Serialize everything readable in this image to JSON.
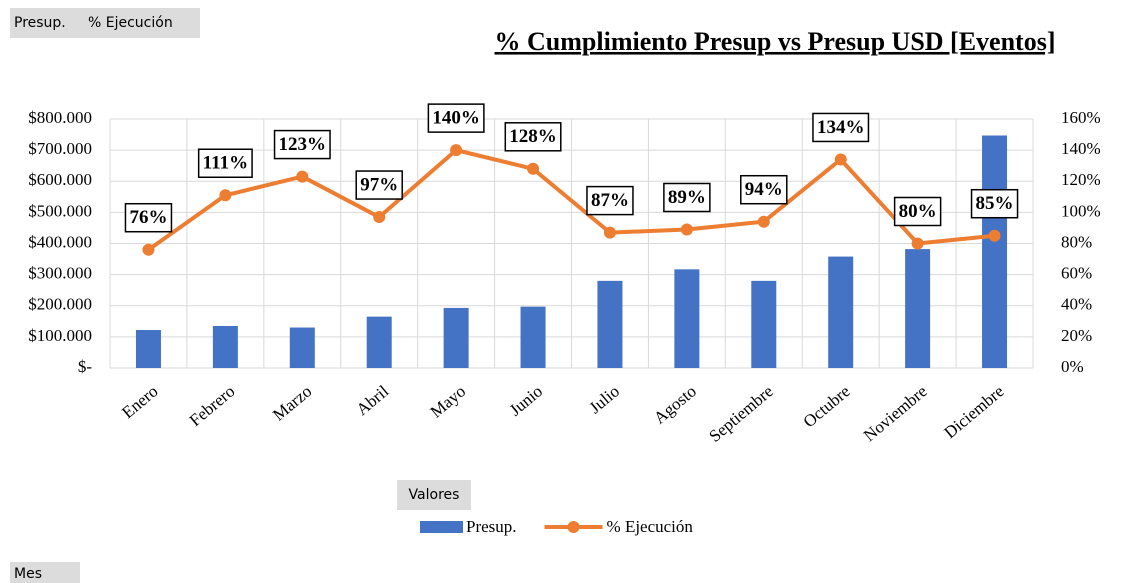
{
  "chart_data": {
    "type": "bar",
    "title": "% Cumplimiento Presup vs Presup USD [Eventos]",
    "categories": [
      "Enero",
      "Febrero",
      "Marzo",
      "Abril",
      "Mayo",
      "Junio",
      "Julio",
      "Agosto",
      "Septiembre",
      "Octubre",
      "Noviembre",
      "Diciembre"
    ],
    "series": [
      {
        "name": "Presup.",
        "type": "bar",
        "color": "#4472c4",
        "axis": "y",
        "values": [
          122000,
          135000,
          130000,
          165000,
          193000,
          197000,
          280000,
          317000,
          280000,
          358000,
          382000,
          747000
        ]
      },
      {
        "name": "% Ejecución",
        "type": "line",
        "color": "#ed7d31",
        "axis": "y2",
        "values": [
          76,
          111,
          123,
          97,
          140,
          128,
          87,
          89,
          94,
          134,
          80,
          85
        ],
        "value_labels": [
          "76%",
          "111%",
          "123%",
          "97%",
          "140%",
          "128%",
          "87%",
          "89%",
          "94%",
          "134%",
          "80%",
          "85%"
        ]
      }
    ],
    "ylim": [
      0,
      800000
    ],
    "yticks": [
      {
        "value": 0,
        "label": "$-"
      },
      {
        "value": 100000,
        "label": "$100.000"
      },
      {
        "value": 200000,
        "label": "$200.000"
      },
      {
        "value": 300000,
        "label": "$300.000"
      },
      {
        "value": 400000,
        "label": "$400.000"
      },
      {
        "value": 500000,
        "label": "$500.000"
      },
      {
        "value": 600000,
        "label": "$600.000"
      },
      {
        "value": 700000,
        "label": "$700.000"
      },
      {
        "value": 800000,
        "label": "$800.000"
      }
    ],
    "y2lim": [
      0,
      160
    ],
    "y2ticks": [
      {
        "value": 0,
        "label": "0%"
      },
      {
        "value": 20,
        "label": "20%"
      },
      {
        "value": 40,
        "label": "40%"
      },
      {
        "value": 60,
        "label": "60%"
      },
      {
        "value": 80,
        "label": "80%"
      },
      {
        "value": 100,
        "label": "100%"
      },
      {
        "value": 120,
        "label": "120%"
      },
      {
        "value": 140,
        "label": "140%"
      },
      {
        "value": 160,
        "label": "160%"
      }
    ],
    "grid": true,
    "legend": "bottom",
    "legend_title": "Valores",
    "axis_field": "Mes"
  }
}
